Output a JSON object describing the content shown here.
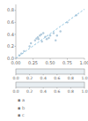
{
  "chart_data": [
    {
      "type": "scatter",
      "series": [
        {
          "type": "scatter",
          "color": "#a8c4d8",
          "x": [
            0.05,
            0.08,
            0.12,
            0.2,
            0.22,
            0.28,
            0.3,
            0.32,
            0.33,
            0.35,
            0.37,
            0.38,
            0.4,
            0.43,
            0.45,
            0.48,
            0.5,
            0.55,
            0.58,
            0.6,
            0.65,
            0.75,
            0.88
          ],
          "values": [
            0.05,
            0.08,
            0.12,
            0.2,
            0.25,
            0.3,
            0.33,
            0.35,
            0.32,
            0.38,
            0.4,
            0.28,
            0.42,
            0.36,
            0.32,
            0.34,
            0.38,
            0.42,
            0.3,
            0.38,
            0.45,
            0.6,
            0.72
          ]
        },
        {
          "type": "line",
          "color": "#7ab8d8",
          "line_style": "dashed",
          "x": [
            0.0,
            1.0
          ],
          "values": [
            0.0,
            0.82
          ]
        }
      ],
      "xlim": [
        0.0,
        1.0
      ],
      "ylim": [
        0.0,
        0.9
      ],
      "xticks": [
        {
          "value": 0.0,
          "label": "0.00"
        },
        0.25,
        {
          "value": 0.5,
          "label": "0.50"
        },
        0.75,
        {
          "value": 1.0,
          "label": "1.00"
        }
      ],
      "yticks": [
        {
          "value": 0.0,
          "label": "0.0"
        },
        0.2,
        0.4,
        0.6,
        0.8
      ],
      "annotations": [
        "▪ a",
        "▪ b",
        "▪ c"
      ]
    },
    {
      "type": "strip",
      "xlim": [
        0.0,
        1.0
      ],
      "xticks": [
        {
          "value": 0.0,
          "label": "0.0"
        },
        0.2,
        0.4,
        0.6,
        0.8,
        {
          "value": 1.0,
          "label": "1.0"
        }
      ]
    },
    {
      "type": "strip",
      "xlim": [
        0.0,
        1.0
      ],
      "xticks": [
        {
          "value": 0.0,
          "label": "0.0"
        },
        0.2,
        0.4,
        0.6,
        0.8,
        {
          "value": 1.0,
          "label": "1.0"
        }
      ]
    }
  ]
}
